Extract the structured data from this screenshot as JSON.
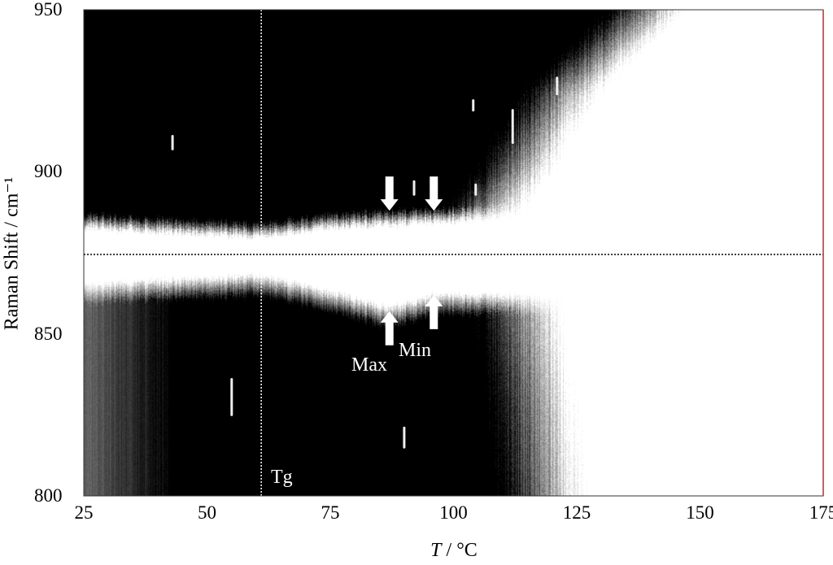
{
  "chart_data": {
    "type": "heatmap",
    "title": "",
    "xlabel_italic": "T",
    "xlabel_rest": " / °C",
    "ylabel": "Raman Shift / cm⁻¹",
    "xlim": [
      25,
      175
    ],
    "ylim": [
      800,
      950
    ],
    "xticks": [
      "25",
      "50",
      "75",
      "100",
      "125",
      "150",
      "175"
    ],
    "yticks": [
      "800",
      "850",
      "900",
      "950"
    ],
    "colormap": "grayscale (black = high, white = low)",
    "reference_lines": {
      "Tg_temperature": 61,
      "horizontal_shift": 874.5
    },
    "upper_band": {
      "lower_edge": {
        "T": [
          25,
          45,
          61,
          75,
          100,
          115
        ],
        "shift": [
          883,
          881,
          880,
          883,
          885,
          887
        ]
      },
      "right_edge": {
        "shift": [
          885,
          900,
          925,
          950
        ],
        "T": [
          110,
          118,
          128,
          145
        ]
      }
    },
    "lower_band": {
      "upper_edge": {
        "T": [
          25,
          45,
          61,
          75,
          87,
          96,
          110,
          125
        ],
        "shift": [
          865,
          867,
          868,
          863,
          858,
          862,
          862,
          860
        ]
      },
      "right_edge": {
        "shift": [
          800,
          830,
          860
        ],
        "T": [
          125,
          123,
          120
        ]
      }
    },
    "annotations": {
      "tg": "Tg",
      "max": "Max",
      "min": "Min",
      "arrows": [
        {
          "dir": "down",
          "T": 87,
          "shift": 888
        },
        {
          "dir": "down",
          "T": 96,
          "shift": 888
        },
        {
          "dir": "up",
          "T": 87,
          "shift": 857
        },
        {
          "dir": "up",
          "T": 96,
          "shift": 862
        }
      ]
    },
    "spikes": [
      {
        "T": 43,
        "shift": [
          907,
          911
        ]
      },
      {
        "T": 55,
        "shift": [
          825,
          836
        ]
      },
      {
        "T": 90,
        "shift": [
          815,
          821
        ]
      },
      {
        "T": 92,
        "shift": [
          893,
          897
        ]
      },
      {
        "T": 104,
        "shift": [
          919,
          922
        ]
      },
      {
        "T": 104.5,
        "shift": [
          893,
          896
        ]
      },
      {
        "T": 112,
        "shift": [
          909,
          919
        ]
      },
      {
        "T": 121,
        "shift": [
          924,
          929
        ]
      }
    ]
  }
}
